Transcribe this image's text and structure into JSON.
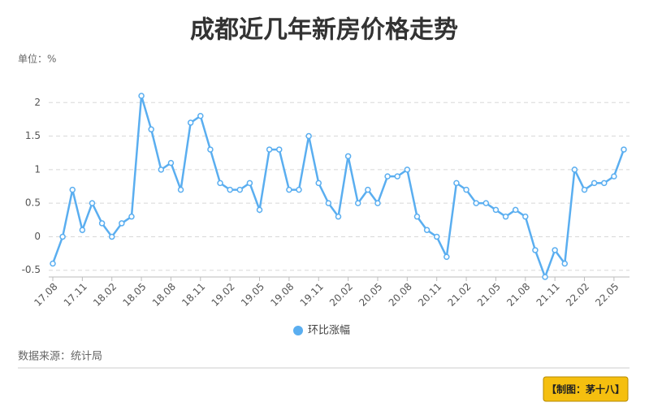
{
  "chart_data": {
    "type": "line",
    "title": "成都近几年新房价格走势",
    "unit_label": "单位：%",
    "source": "数据来源：统计局",
    "credit": "【制图：茅十八】",
    "categories": [
      "17.08",
      null,
      null,
      "17.11",
      null,
      null,
      "18.02",
      null,
      null,
      "18.05",
      null,
      null,
      "18.08",
      null,
      null,
      "18.11",
      null,
      null,
      "19.02",
      null,
      null,
      "19.05",
      null,
      null,
      "19.08",
      null,
      null,
      "19.11",
      null,
      null,
      "20.02",
      null,
      null,
      "20.05",
      null,
      null,
      "20.08",
      null,
      null,
      "20.11",
      null,
      null,
      "21.02",
      null,
      null,
      "21.05",
      null,
      null,
      "21.08",
      null,
      null,
      "21.11",
      null,
      null,
      "22.02",
      null,
      null,
      "22.05",
      null
    ],
    "series": [
      {
        "name": "环比涨幅",
        "color": "#5aaef0",
        "values": [
          -0.4,
          0,
          0.7,
          0.1,
          0.5,
          0.2,
          0,
          0.2,
          0.3,
          2.1,
          1.6,
          1.0,
          1.1,
          0.7,
          1.7,
          1.8,
          1.3,
          0.8,
          0.7,
          0.7,
          0.8,
          0.4,
          1.3,
          1.3,
          0.7,
          0.7,
          1.5,
          0.8,
          0.5,
          0.3,
          1.2,
          0.5,
          0.7,
          0.5,
          0.9,
          0.9,
          1.0,
          0.3,
          0.1,
          0,
          -0.3,
          0.8,
          0.7,
          0.5,
          0.5,
          0.4,
          0.3,
          0.4,
          0.3,
          -0.2,
          -0.6,
          -0.2,
          -0.4,
          1.0,
          0.7,
          0.8,
          0.8,
          0.9,
          1.3
        ]
      }
    ],
    "ylim": [
      -0.6,
      2.1
    ],
    "yticks": [
      -0.5,
      0,
      0.5,
      1,
      1.5,
      2
    ],
    "grid": true,
    "legend": "bottom"
  }
}
